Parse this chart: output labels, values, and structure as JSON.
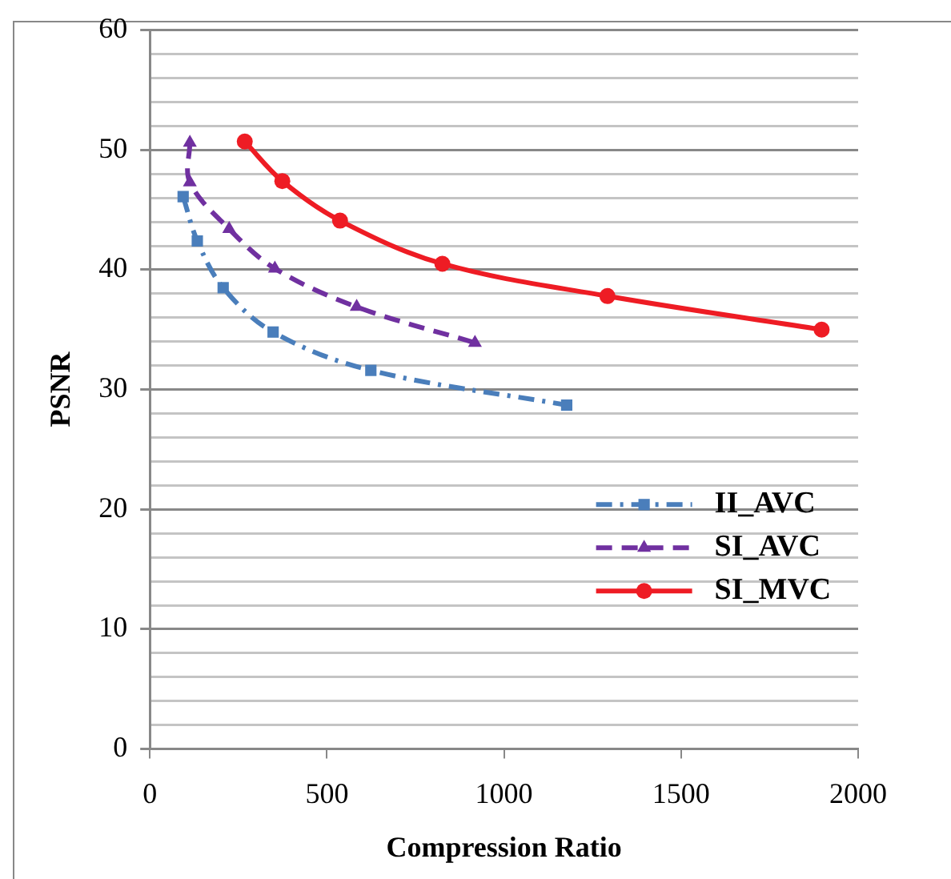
{
  "chart_data": {
    "type": "line",
    "xlabel": "Compression Ratio",
    "ylabel": "PSNR",
    "xlim": [
      0,
      2000
    ],
    "xticks": [
      0,
      500,
      1000,
      1500,
      2000
    ],
    "ylim": [
      0,
      60
    ],
    "yticks": [
      0,
      {
        "value": 2,
        "label": null
      },
      {
        "value": 4,
        "label": null
      },
      {
        "value": 6,
        "label": null
      },
      {
        "value": 8,
        "label": null
      },
      10,
      {
        "value": 12,
        "label": null
      },
      {
        "value": 14,
        "label": null
      },
      {
        "value": 16,
        "label": null
      },
      {
        "value": 18,
        "label": null
      },
      20,
      {
        "value": 22,
        "label": null
      },
      {
        "value": 24,
        "label": null
      },
      {
        "value": 26,
        "label": null
      },
      {
        "value": 28,
        "label": null
      },
      30,
      {
        "value": 32,
        "label": null
      },
      {
        "value": 34,
        "label": null
      },
      {
        "value": 36,
        "label": null
      },
      {
        "value": 38,
        "label": null
      },
      40,
      {
        "value": 42,
        "label": null
      },
      {
        "value": 44,
        "label": null
      },
      {
        "value": 46,
        "label": null
      },
      {
        "value": 48,
        "label": null
      },
      50,
      {
        "value": 52,
        "label": null
      },
      {
        "value": 54,
        "label": null
      },
      {
        "value": 56,
        "label": null
      },
      {
        "value": 58,
        "label": null
      },
      60
    ],
    "grid": "y",
    "legend": "right",
    "series": [
      {
        "name": "II_AVC",
        "color": "#4a7ebb",
        "marker": "square",
        "line_style": "dashdot",
        "x": [
          94,
          134,
          207,
          348,
          624,
          1177
        ],
        "values": [
          46.1,
          42.4,
          38.5,
          34.8,
          31.6,
          28.7
        ]
      },
      {
        "name": "SI_AVC",
        "color": "#7030a0",
        "marker": "triangle",
        "line_style": "dashed",
        "x": [
          113,
          113,
          224,
          353,
          584,
          918
        ],
        "values": [
          50.6,
          47.3,
          43.4,
          40.1,
          36.9,
          33.9
        ]
      },
      {
        "name": "SI_MVC",
        "color": "#ee1c24",
        "marker": "circle",
        "line_style": "solid",
        "x": [
          268,
          374,
          537,
          826,
          1292,
          1897
        ],
        "values": [
          50.7,
          47.4,
          44.1,
          40.5,
          37.8,
          35.0
        ]
      }
    ]
  }
}
